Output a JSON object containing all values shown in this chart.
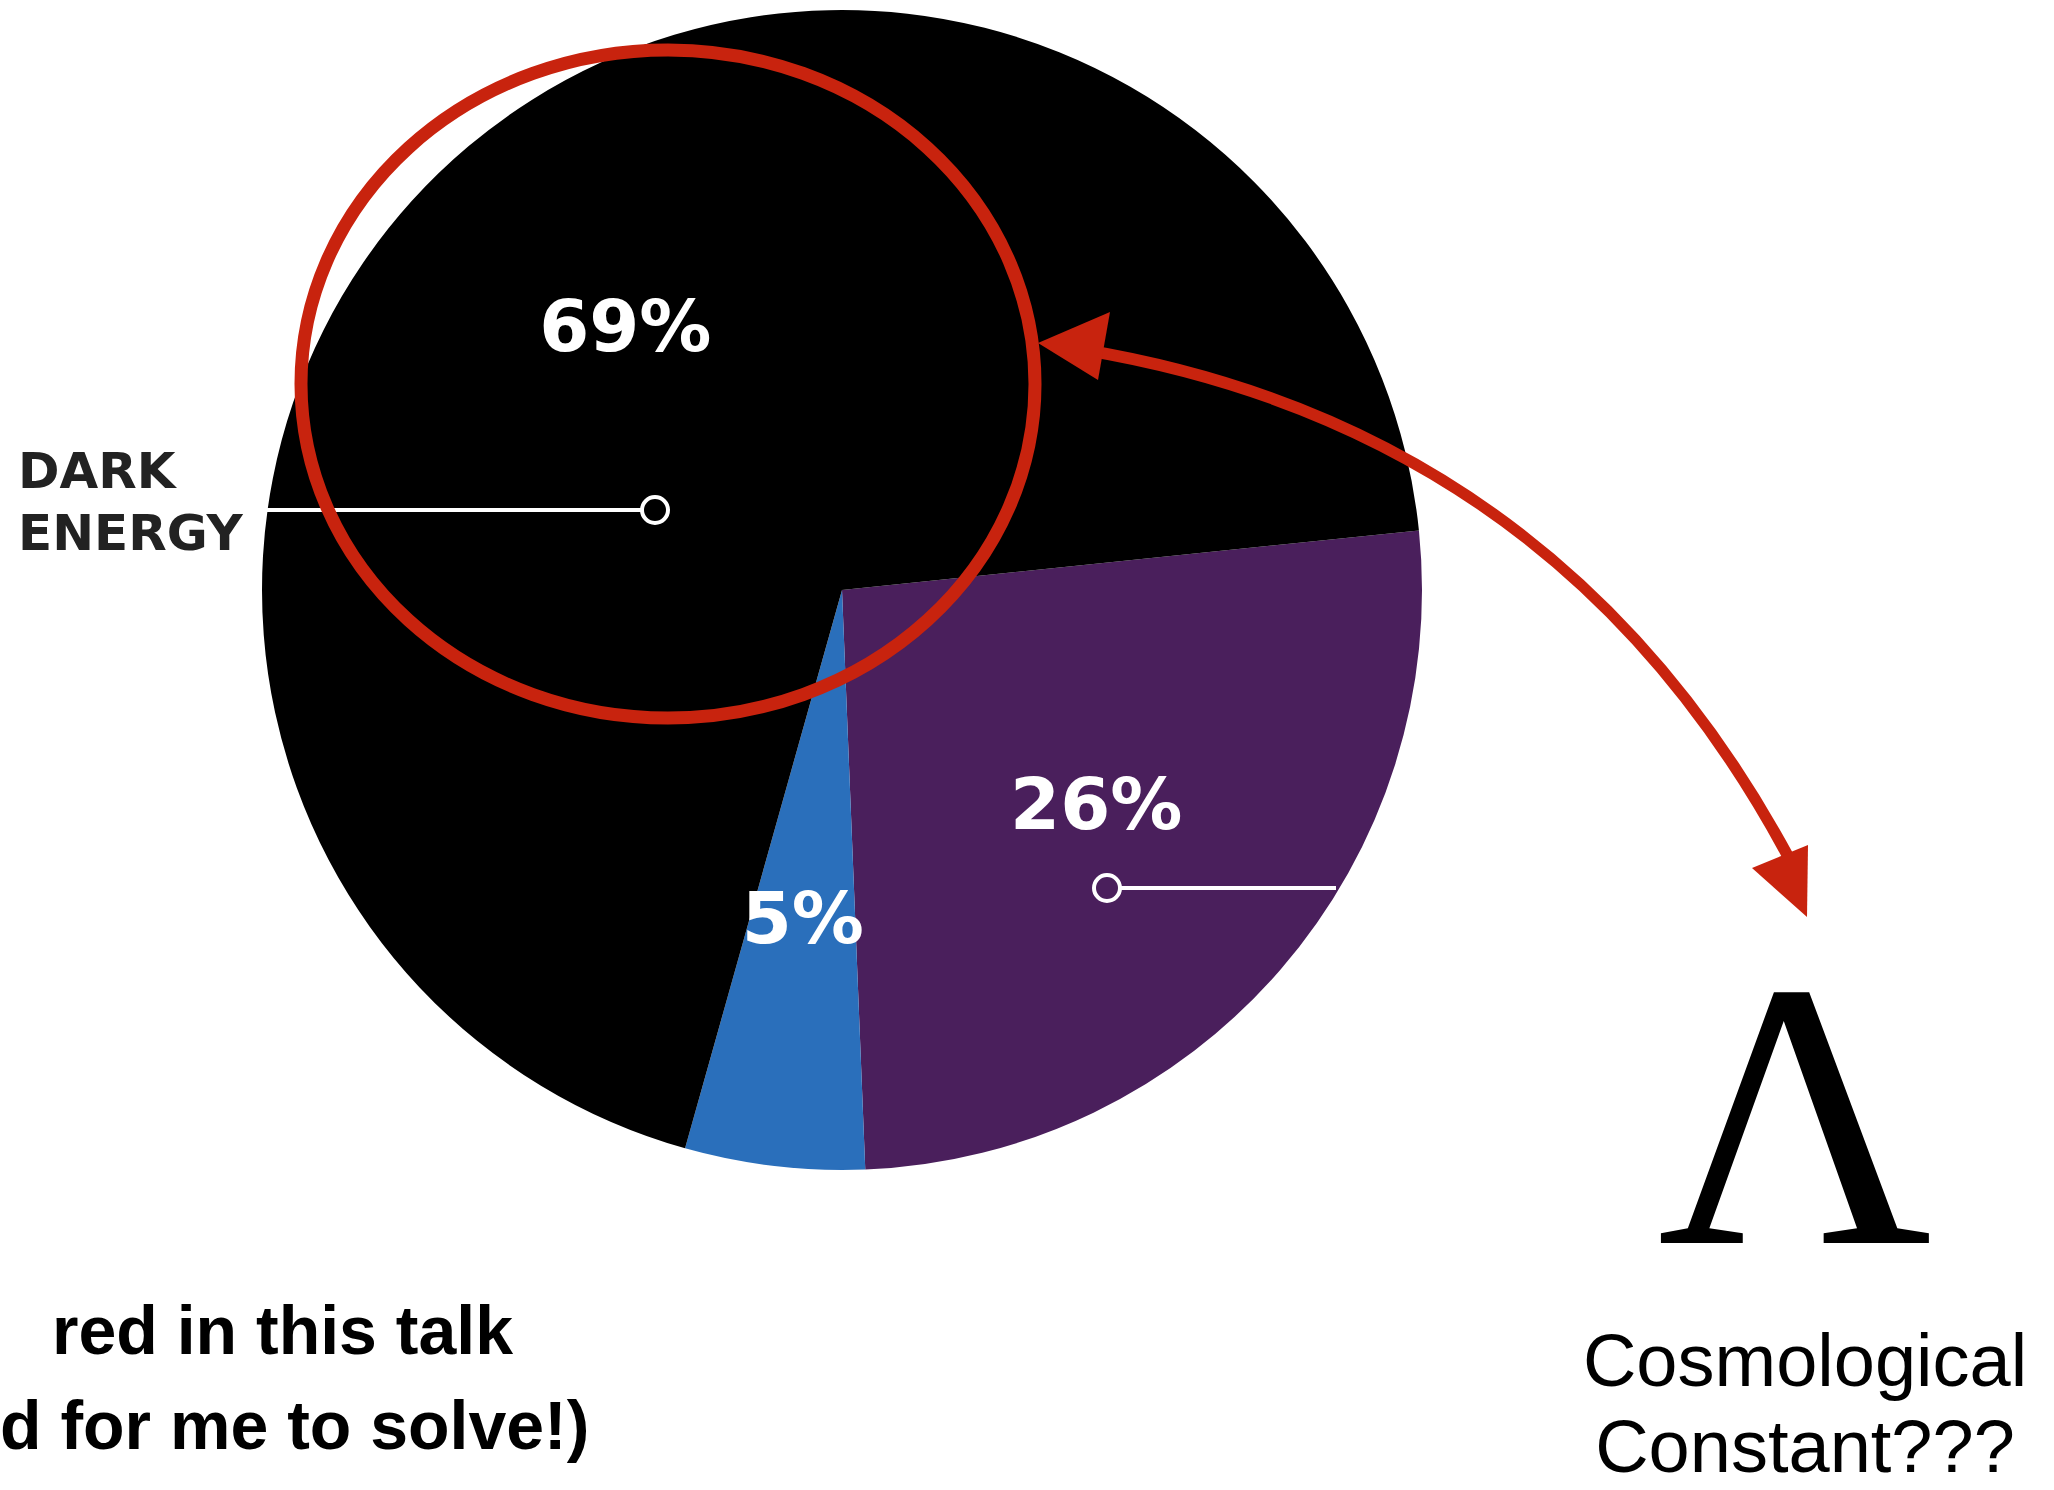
{
  "chart_data": {
    "type": "pie",
    "categories": [
      null,
      null,
      "DARK ENERGY"
    ],
    "values": [
      26,
      5,
      69
    ],
    "colors": [
      "#4a1f5c",
      "#2a6fbb",
      "#000000"
    ],
    "value_labels": [
      "26%",
      "5%",
      "69%"
    ],
    "annotations": [
      "Λ",
      "Cosmological Constant???",
      "red in this talk",
      "d for me to solve!)"
    ]
  }
}
